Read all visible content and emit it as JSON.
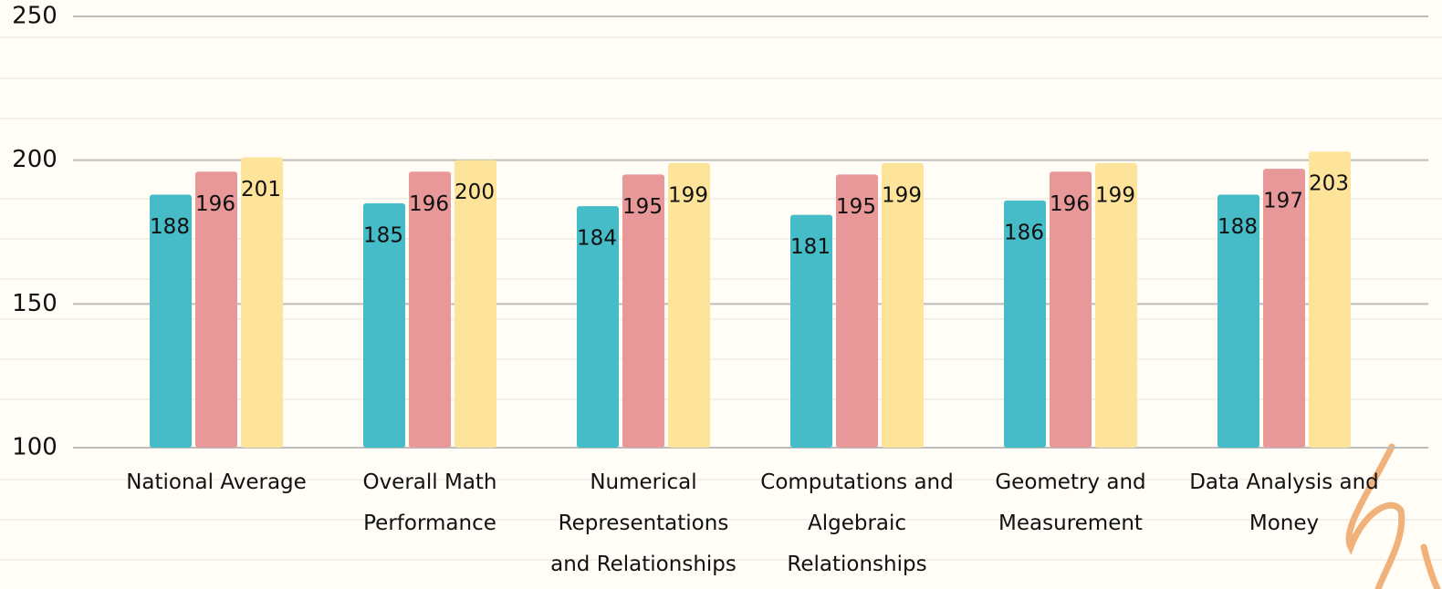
{
  "chart_data": {
    "type": "bar",
    "categories": [
      "National Average",
      "Overall Math Performance",
      "Numerical Representations and Relationships",
      "Computations and Algebraic Relationships",
      "Geometry and Measurement",
      "Data Analysis and Money"
    ],
    "series": [
      {
        "color": "#45bcc8",
        "values": [
          188,
          185,
          184,
          181,
          186,
          188
        ]
      },
      {
        "color": "#e89898",
        "values": [
          196,
          196,
          195,
          195,
          196,
          197
        ]
      },
      {
        "color": "#fde49a",
        "values": [
          201,
          200,
          199,
          199,
          199,
          203
        ]
      }
    ],
    "ylim": [
      100,
      250
    ],
    "yticks": [
      100,
      150,
      200,
      250
    ],
    "grid": true
  }
}
